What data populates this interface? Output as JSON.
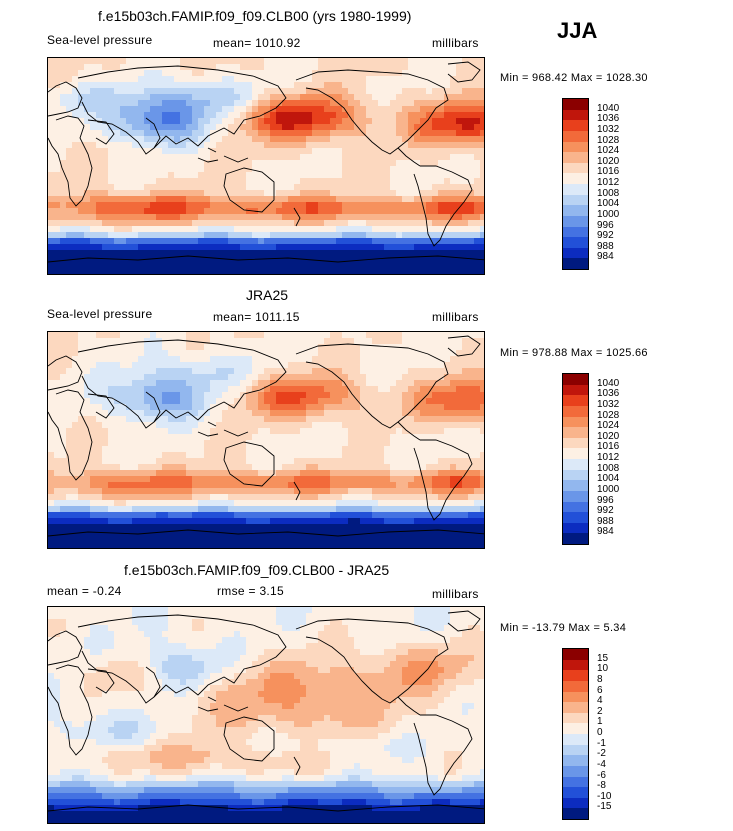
{
  "season": "JJA",
  "panels": [
    {
      "title": "f.e15b03ch.FAMIP.f09_f09.CLB00 (yrs 1980-1999)",
      "left_label": "Sea-level pressure",
      "center_label": "mean= 1010.92",
      "right_label": "millibars",
      "minmax": "Min = 968.42 Max = 1028.30",
      "colorbar": {
        "labels": [
          "1040",
          "1036",
          "1032",
          "1028",
          "1024",
          "1020",
          "1016",
          "1012",
          "1008",
          "1004",
          "1000",
          "996",
          "992",
          "988",
          "984"
        ],
        "colors": [
          "#8b0000",
          "#c0160c",
          "#e8401c",
          "#f26a3a",
          "#f6915d",
          "#f9b48c",
          "#fcd8bf",
          "#fdf0e4",
          "#dce9f8",
          "#b9d3f3",
          "#92b7ee",
          "#6a96e8",
          "#4472e2",
          "#2250d8",
          "#0c2cc0",
          "#001a80"
        ]
      },
      "field": "model"
    },
    {
      "title": "JRA25",
      "left_label": "Sea-level pressure",
      "center_label": "mean= 1011.15",
      "right_label": "millibars",
      "minmax": "Min = 978.88 Max = 1025.66",
      "colorbar": {
        "labels": [
          "1040",
          "1036",
          "1032",
          "1028",
          "1024",
          "1020",
          "1016",
          "1012",
          "1008",
          "1004",
          "1000",
          "996",
          "992",
          "988",
          "984"
        ],
        "colors": [
          "#8b0000",
          "#c0160c",
          "#e8401c",
          "#f26a3a",
          "#f6915d",
          "#f9b48c",
          "#fcd8bf",
          "#fdf0e4",
          "#dce9f8",
          "#b9d3f3",
          "#92b7ee",
          "#6a96e8",
          "#4472e2",
          "#2250d8",
          "#0c2cc0",
          "#001a80"
        ]
      },
      "field": "obs"
    },
    {
      "title": "f.e15b03ch.FAMIP.f09_f09.CLB00 - JRA25",
      "left_label": "mean =   -0.24",
      "center_label": "rmse =    3.15",
      "right_label": "millibars",
      "minmax": "Min = -13.79 Max =    5.34",
      "colorbar": {
        "labels": [
          "15",
          "10",
          "8",
          "6",
          "4",
          "2",
          "1",
          "0",
          "-1",
          "-2",
          "-4",
          "-6",
          "-8",
          "-10",
          "-15"
        ],
        "colors": [
          "#8b0000",
          "#c0160c",
          "#e8401c",
          "#f26a3a",
          "#f6915d",
          "#f9b48c",
          "#fcd8bf",
          "#fdf0e4",
          "#dce9f8",
          "#b9d3f3",
          "#92b7ee",
          "#6a96e8",
          "#4472e2",
          "#2250d8",
          "#0c2cc0",
          "#001a80"
        ]
      },
      "field": "diff"
    }
  ]
}
